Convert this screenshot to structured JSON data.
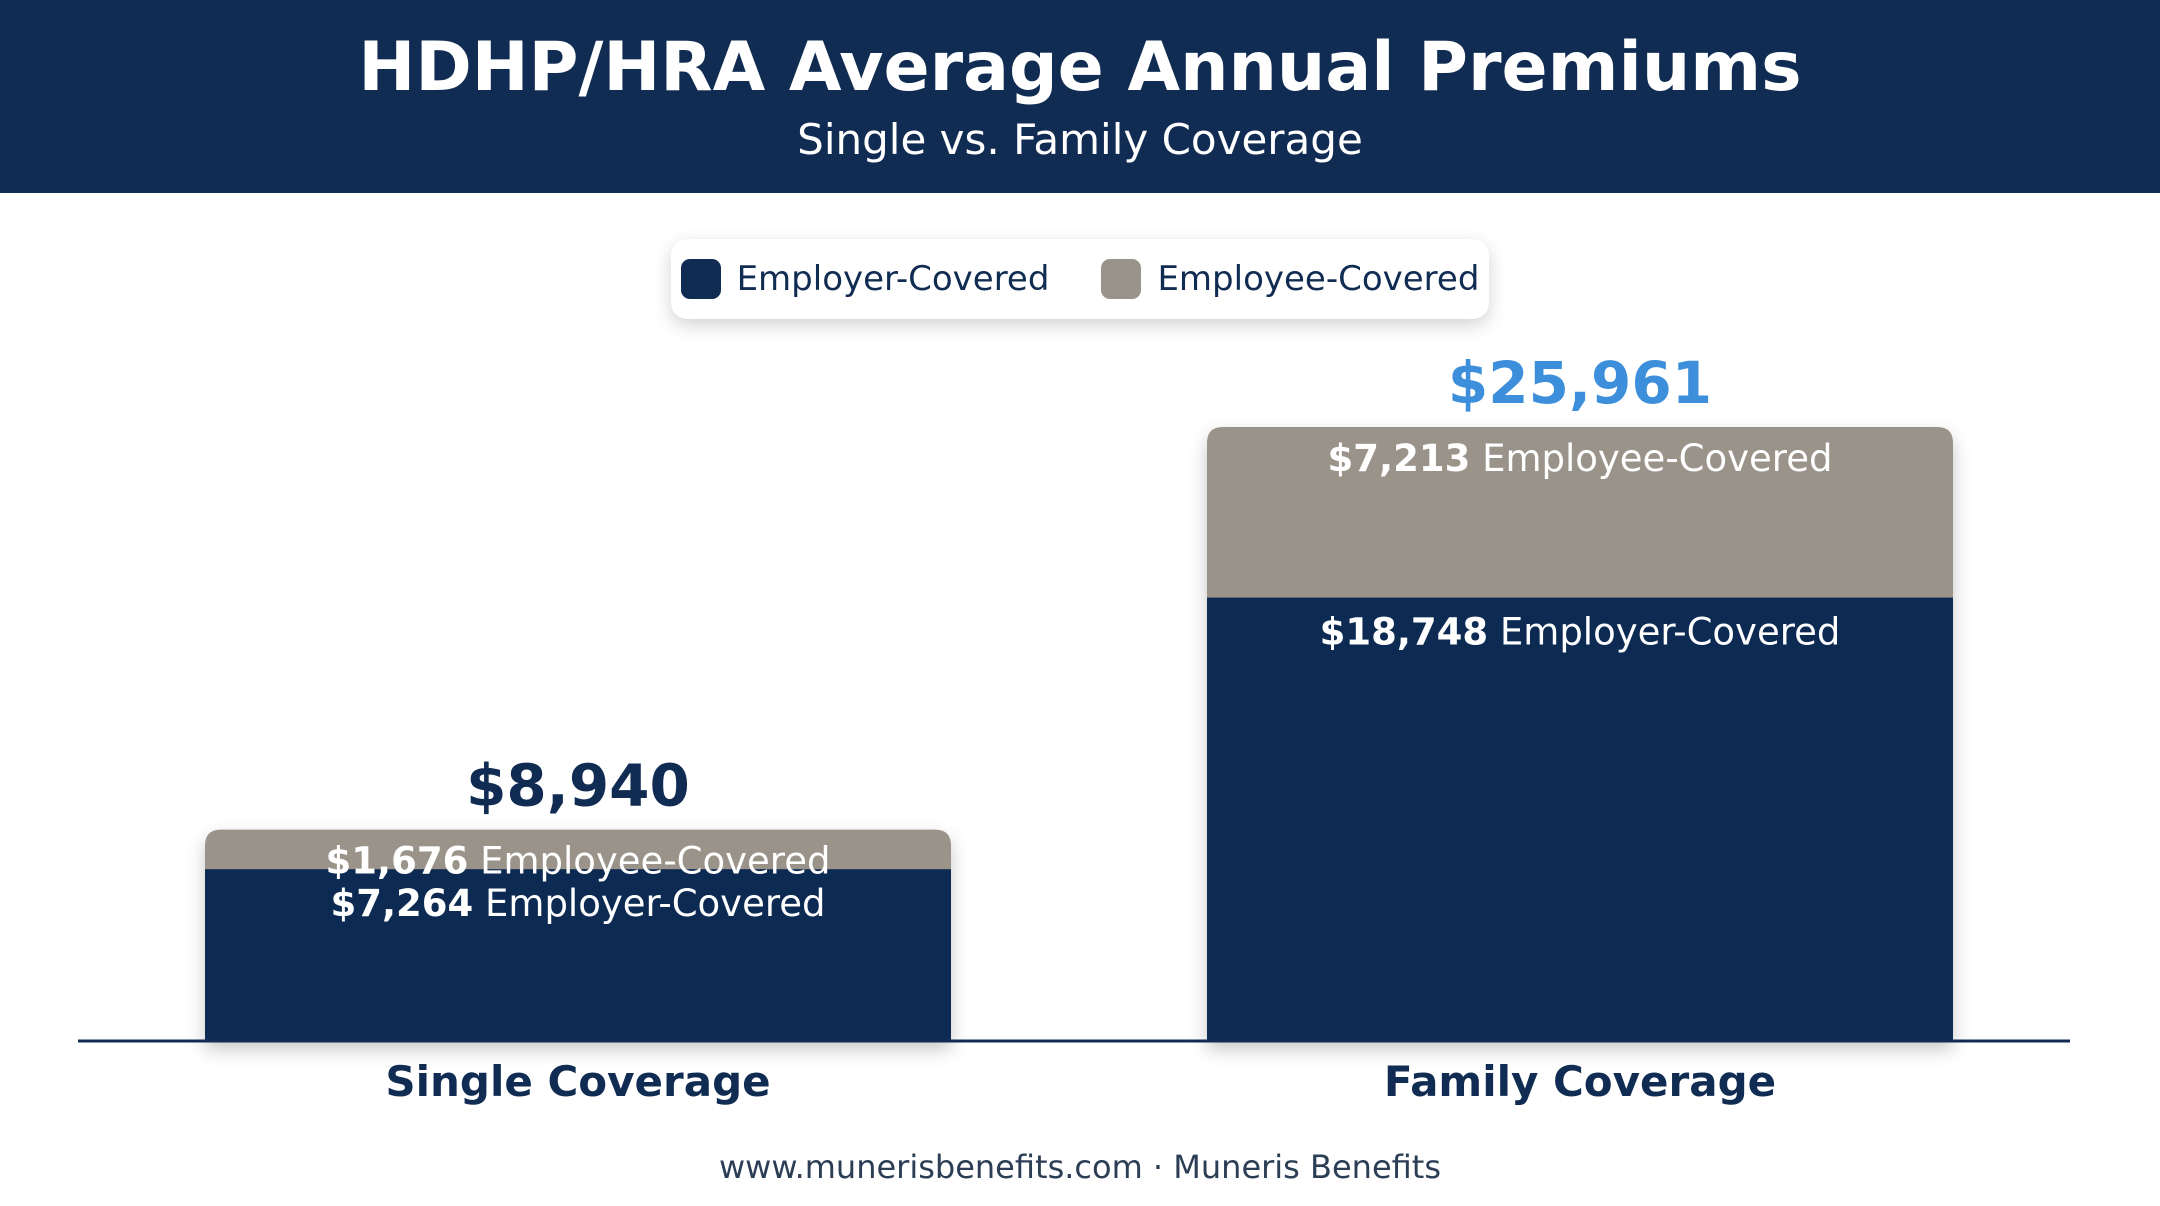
{
  "header": {
    "title": "HDHP/HRA Average Annual Premiums",
    "subtitle": "Single vs. Family Coverage"
  },
  "legend": {
    "items": [
      {
        "label": "Employer-Covered",
        "color": "#112c52"
      },
      {
        "label": "Employee-Covered",
        "color": "#9a938a"
      }
    ]
  },
  "chart_data": {
    "type": "bar",
    "stacked": true,
    "categories": [
      "Single Coverage",
      "Family Coverage"
    ],
    "series": [
      {
        "name": "Employer-Covered",
        "values": [
          7264,
          18748
        ],
        "color": "#112c52"
      },
      {
        "name": "Employee-Covered",
        "values": [
          1676,
          7213
        ],
        "color": "#9a938a"
      }
    ],
    "totals": [
      8940,
      25961
    ],
    "total_labels": [
      "$8,940",
      "$25,961"
    ],
    "total_label_colors": [
      "#112c52",
      "#3d8fdb"
    ],
    "segment_labels": {
      "Employer-Covered": [
        "$7,264",
        "$18,748"
      ],
      "Employee-Covered": [
        "$1,676",
        "$7,213"
      ]
    },
    "title": "HDHP/HRA Average Annual Premiums",
    "xlabel": "",
    "ylabel": "",
    "grid": false,
    "legend_position": "top-center"
  },
  "footer": {
    "text": "www.munerisbenefits.com · Muneris Benefits"
  }
}
